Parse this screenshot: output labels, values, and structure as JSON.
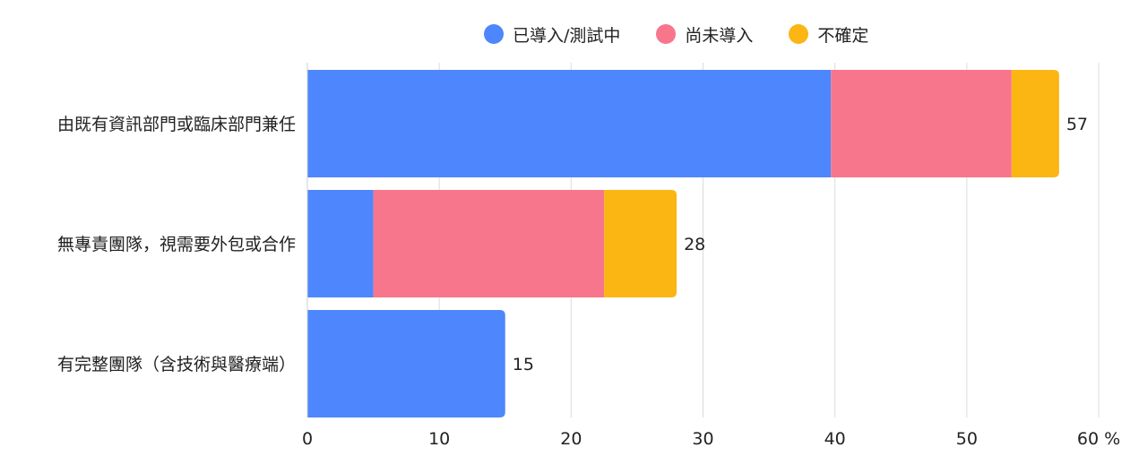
{
  "chart_data": {
    "type": "bar",
    "orientation": "horizontal",
    "stacked": true,
    "categories": [
      "由既有資訊部門或臨床部門兼任",
      "無專責團隊，視需要外包或合作",
      "有完整團隊（含技術與醫療端）"
    ],
    "series": [
      {
        "name": "已導入/測試中",
        "color": "#4e86fd",
        "values": [
          39.7,
          5.0,
          15.0
        ]
      },
      {
        "name": "尚未導入",
        "color": "#f8768c",
        "values": [
          13.7,
          17.5,
          0
        ]
      },
      {
        "name": "不確定",
        "color": "#fbb614",
        "values": [
          3.6,
          5.5,
          0
        ]
      }
    ],
    "totals": [
      "57",
      "28",
      "15"
    ],
    "xlim": [
      0,
      60
    ],
    "xticks": [
      "0",
      "10",
      "20",
      "30",
      "40",
      "50",
      "60"
    ],
    "unit": "%",
    "grid": true,
    "legend_position": "top"
  }
}
